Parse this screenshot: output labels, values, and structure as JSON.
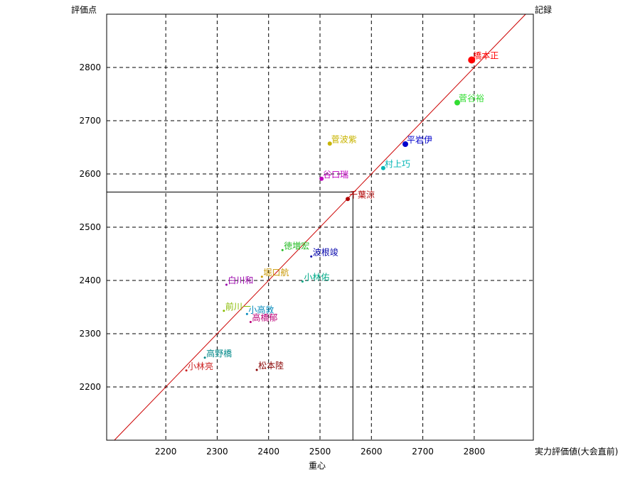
{
  "chart_data": {
    "type": "scatter",
    "ylabel": "評価点",
    "xlabel": "重心",
    "right_top_label": "記録",
    "right_bottom_label": "実力評価値(大会直前)",
    "xlim": [
      2085,
      2915
    ],
    "ylim": [
      2100,
      2900
    ],
    "x_ticks": [
      2200,
      2300,
      2400,
      2500,
      2600,
      2700,
      2800
    ],
    "y_ticks": [
      2200,
      2300,
      2400,
      2500,
      2600,
      2700,
      2800
    ],
    "grid": true,
    "diagonal": {
      "color": "#cc0000"
    },
    "reference_point": {
      "x": 2564,
      "y": 2566
    },
    "points": [
      {
        "label": "橋本正",
        "x": 2795,
        "y": 2814,
        "color": "#ff0000",
        "size": 5
      },
      {
        "label": "菅谷裕",
        "x": 2767,
        "y": 2734,
        "color": "#33dd33",
        "size": 4
      },
      {
        "label": "平岩伊",
        "x": 2666,
        "y": 2656,
        "color": "#0000cc",
        "size": 4
      },
      {
        "label": "菅波紫",
        "x": 2519,
        "y": 2657,
        "color": "#c8b400",
        "size": 3
      },
      {
        "label": "村上巧",
        "x": 2623,
        "y": 2611,
        "color": "#00b5b5",
        "size": 3
      },
      {
        "label": "谷口瑞",
        "x": 2503,
        "y": 2591,
        "color": "#c000c0",
        "size": 3
      },
      {
        "label": "千葉涼",
        "x": 2554,
        "y": 2553,
        "color": "#b00000",
        "size": 3
      },
      {
        "label": "徳増宏",
        "x": 2427,
        "y": 2457,
        "color": "#22bb22",
        "size": 1.5
      },
      {
        "label": "波根竣",
        "x": 2483,
        "y": 2445,
        "color": "#0000aa",
        "size": 1.5
      },
      {
        "label": "堀口航",
        "x": 2387,
        "y": 2407,
        "color": "#c89600",
        "size": 1.5
      },
      {
        "label": "小林佑",
        "x": 2466,
        "y": 2398,
        "color": "#00aa88",
        "size": 1.5
      },
      {
        "label": "白川和",
        "x": 2318,
        "y": 2392,
        "color": "#9900aa",
        "size": 1.5
      },
      {
        "label": "前川一",
        "x": 2313,
        "y": 2343,
        "color": "#88bb00",
        "size": 1.5
      },
      {
        "label": "小高敦",
        "x": 2358,
        "y": 2337,
        "color": "#0088bb",
        "size": 1.5
      },
      {
        "label": "高橋郁",
        "x": 2365,
        "y": 2322,
        "color": "#bb0077",
        "size": 1.5
      },
      {
        "label": "高野橋",
        "x": 2276,
        "y": 2255,
        "color": "#008888",
        "size": 1.5
      },
      {
        "label": "松本陸",
        "x": 2377,
        "y": 2232,
        "color": "#880000",
        "size": 1.5
      },
      {
        "label": "小林亮",
        "x": 2240,
        "y": 2231,
        "color": "#cc2222",
        "size": 1.5
      }
    ]
  }
}
